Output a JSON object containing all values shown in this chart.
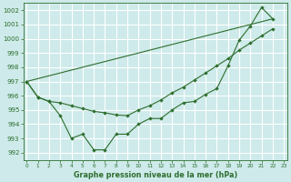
{
  "xlabel": "Graphe pression niveau de la mer (hPa)",
  "bg_color": "#ceeaea",
  "grid_color": "#ffffff",
  "line_color": "#2d6e2d",
  "ylim": [
    991.5,
    1002.5
  ],
  "xlim": [
    -0.3,
    23.3
  ],
  "yticks": [
    992,
    993,
    994,
    995,
    996,
    997,
    998,
    999,
    1000,
    1001,
    1002
  ],
  "xticks": [
    0,
    1,
    2,
    3,
    4,
    5,
    6,
    7,
    8,
    9,
    10,
    11,
    12,
    13,
    14,
    15,
    16,
    17,
    18,
    19,
    20,
    21,
    22,
    23
  ],
  "line1_x": [
    0,
    1,
    2,
    3,
    4,
    5,
    6,
    7,
    8,
    9,
    10,
    11,
    12,
    13,
    14,
    15,
    16,
    17,
    18,
    19,
    20,
    21,
    22
  ],
  "line1_y": [
    997.0,
    995.9,
    995.6,
    994.6,
    993.0,
    993.3,
    992.2,
    992.2,
    993.3,
    993.3,
    994.0,
    994.4,
    994.4,
    995.0,
    995.5,
    995.6,
    996.1,
    996.5,
    998.1,
    999.9,
    1000.9,
    1002.2,
    1001.4
  ],
  "line2_x": [
    0,
    1,
    2,
    3,
    4,
    5,
    6,
    7,
    8,
    9,
    10,
    11,
    12,
    13,
    14,
    15,
    16,
    17,
    18,
    19,
    20,
    21,
    22
  ],
  "line2_y": [
    997.0,
    995.9,
    995.6,
    995.5,
    995.3,
    995.1,
    994.9,
    994.8,
    994.65,
    994.6,
    995.0,
    995.3,
    995.7,
    996.2,
    996.6,
    997.1,
    997.6,
    998.1,
    998.6,
    999.2,
    999.7,
    1000.2,
    1000.7
  ],
  "line3_x": [
    0,
    22
  ],
  "line3_y": [
    997.0,
    1001.4
  ]
}
